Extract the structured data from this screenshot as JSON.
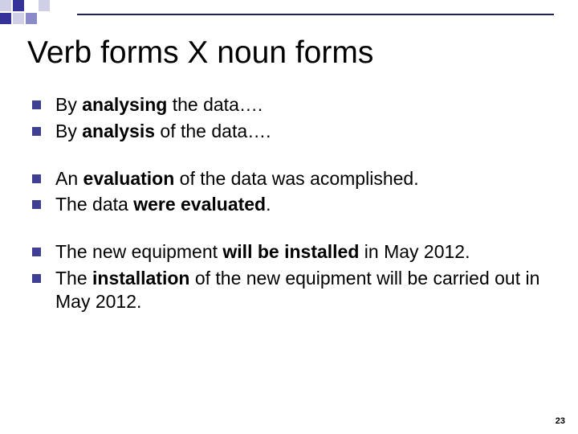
{
  "colors": {
    "accent_dark": "#33339a",
    "accent_mid": "#8a8ac8",
    "accent_light": "#cfcfe8",
    "text": "#000000",
    "bullet": "#3f3f93",
    "line": "#202060"
  },
  "title": "Verb forms X noun forms",
  "title_fontsize": 39,
  "body_fontsize": 23,
  "groups": [
    {
      "items": [
        {
          "html": "By <b>analysing</b> the data…."
        },
        {
          "html": "By <b>analysis</b> of the data…."
        }
      ]
    },
    {
      "items": [
        {
          "html": "An <b>evaluation</b> of the data was acomplished."
        },
        {
          "html": "The data <b>were evaluated</b>."
        }
      ]
    },
    {
      "items": [
        {
          "html": "The new equipment <b>will be installed</b> in May 2012."
        },
        {
          "html": "The <b>installation</b> of the new equipment will be carried out in May 2012."
        }
      ]
    }
  ],
  "page_number": "23"
}
